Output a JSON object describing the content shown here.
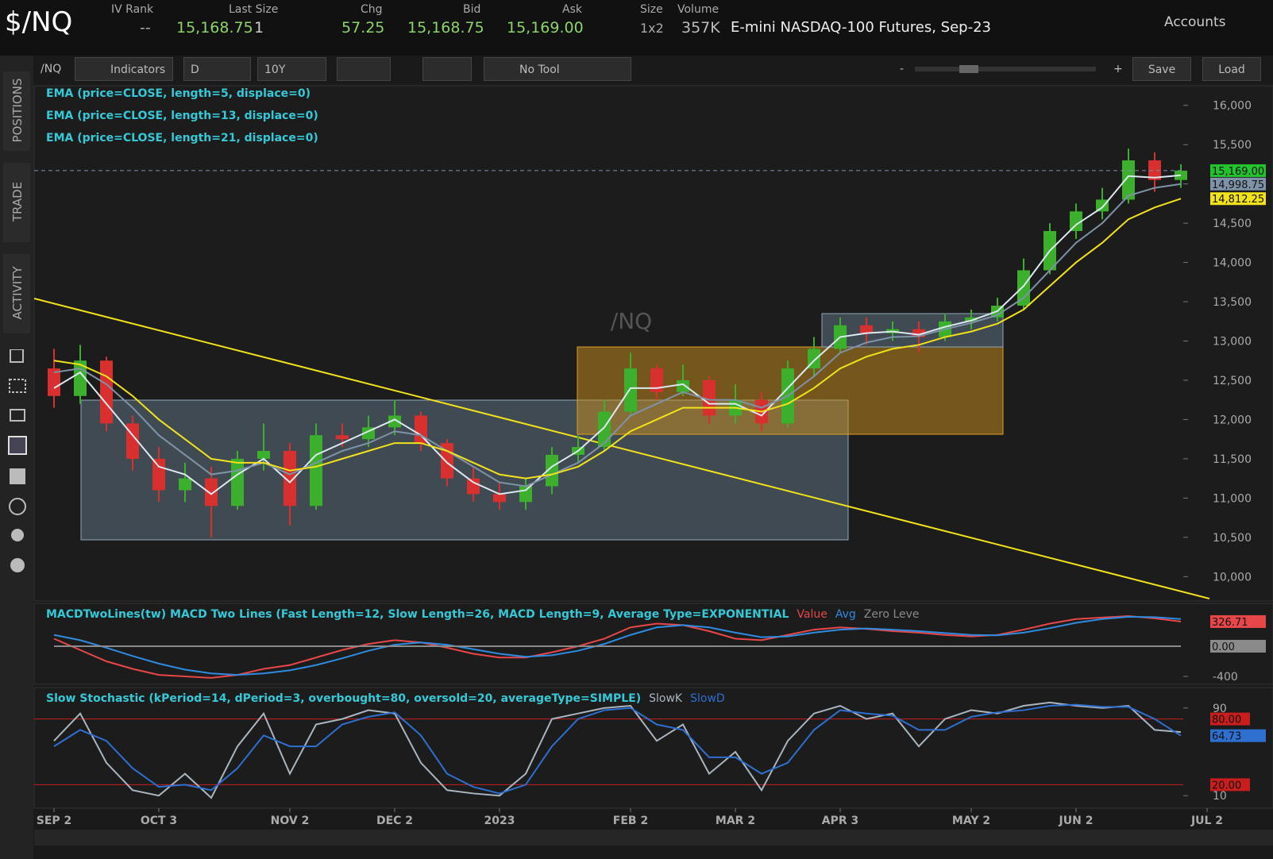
{
  "header": {
    "symbol": "$/NQ",
    "fields": [
      {
        "label": "IV Rank",
        "value": "--"
      },
      {
        "label": "Last Size",
        "value": "15,168.75",
        "extra": "1"
      },
      {
        "label": "Chg",
        "value": "57.25"
      },
      {
        "label": "Bid",
        "value": "15,168.75"
      },
      {
        "label": "Ask",
        "value": "15,169.00"
      },
      {
        "label": "Size",
        "value": "1x2"
      },
      {
        "label": "Volume",
        "value": "357K"
      }
    ],
    "description": "E-mini NASDAQ-100 Futures, Sep-23",
    "accounts": "Accounts"
  },
  "toolbar": {
    "symbol": "/NQ",
    "indicators": "Indicators",
    "aggregation": "D",
    "range": "10Y",
    "tool": "No Tool",
    "zoom_out": "-",
    "zoom_in": "+",
    "save": "Save",
    "load": "Load"
  },
  "sidebar": {
    "tabs": [
      "POSITIONS",
      "TRADE",
      "ACTIVITY"
    ]
  },
  "chart_data": [
    {
      "type": "candlestick",
      "watermark": "/NQ",
      "categories": [
        "SEP 2",
        null,
        null,
        null,
        "OCT 3",
        null,
        null,
        null,
        null,
        "NOV 2",
        null,
        null,
        null,
        "DEC 2",
        null,
        null,
        null,
        "2023",
        null,
        null,
        null,
        null,
        "FEB 2",
        null,
        null,
        null,
        "MAR 2",
        null,
        null,
        null,
        "APR 3",
        null,
        null,
        null,
        null,
        "MAY 2",
        null,
        null,
        null,
        "JUN 2",
        null,
        null,
        null,
        null,
        "JUL 2"
      ],
      "open": [
        12650,
        12300,
        12750,
        11950,
        11500,
        11100,
        11250,
        10900,
        11500,
        11600,
        10900,
        11800,
        11750,
        11900,
        12050,
        11700,
        11250,
        11050,
        10950,
        11150,
        11550,
        11650,
        12100,
        12650,
        12350,
        12500,
        12050,
        12250,
        11950,
        12650,
        12900,
        13200,
        13100,
        13150,
        13050,
        13250,
        13300,
        13450,
        13900,
        14400,
        14650,
        14800,
        15300,
        15050,
        null
      ],
      "high": [
        12900,
        12950,
        12800,
        12050,
        11650,
        11450,
        11400,
        11600,
        11950,
        11700,
        11950,
        11950,
        12050,
        12250,
        12100,
        11750,
        11400,
        11200,
        11250,
        11650,
        11800,
        12250,
        12850,
        12700,
        12700,
        12550,
        12450,
        12350,
        12750,
        13050,
        13300,
        13300,
        13250,
        13250,
        13350,
        13400,
        13550,
        14050,
        14500,
        14750,
        14950,
        15450,
        15400,
        15250,
        null
      ],
      "low": [
        12150,
        12200,
        11850,
        11350,
        10950,
        10950,
        10500,
        10850,
        11350,
        10650,
        10850,
        11650,
        11650,
        11800,
        11600,
        11150,
        10950,
        10850,
        10850,
        11050,
        11450,
        11600,
        12050,
        12250,
        12300,
        11950,
        11950,
        11850,
        11900,
        12550,
        12850,
        12950,
        13000,
        12850,
        13000,
        13150,
        13250,
        13400,
        13850,
        14300,
        14550,
        14750,
        14900,
        14950,
        null
      ],
      "close": [
        12300,
        12750,
        11950,
        11500,
        11100,
        11250,
        10900,
        11500,
        11600,
        10900,
        11800,
        11750,
        11900,
        12050,
        11700,
        11250,
        11050,
        10950,
        11150,
        11550,
        11650,
        12100,
        12650,
        12350,
        12500,
        12050,
        12250,
        11950,
        12650,
        12900,
        13200,
        13100,
        13150,
        13050,
        13250,
        13300,
        13450,
        13900,
        14400,
        14650,
        14800,
        15300,
        15050,
        15169,
        null
      ],
      "up_color": "#3cb02c",
      "down_color": "#d8302e",
      "series": [
        {
          "name": "EMA (price=CLOSE, length=5, displace=0)",
          "color": "#dce8f2",
          "values": [
            12400,
            12600,
            12200,
            11800,
            11400,
            11300,
            11050,
            11300,
            11500,
            11200,
            11550,
            11700,
            11850,
            12000,
            11800,
            11450,
            11200,
            11050,
            11100,
            11400,
            11600,
            11900,
            12400,
            12400,
            12450,
            12200,
            12200,
            12050,
            12400,
            12750,
            13050,
            13100,
            13120,
            13080,
            13180,
            13260,
            13380,
            13700,
            14150,
            14480,
            14700,
            15100,
            15080,
            15110,
            null
          ]
        },
        {
          "name": "EMA (price=CLOSE, length=13, displace=0)",
          "color": "#7f93a8",
          "values": [
            12600,
            12650,
            12450,
            12150,
            11800,
            11550,
            11300,
            11350,
            11450,
            11300,
            11450,
            11600,
            11700,
            11850,
            11800,
            11600,
            11400,
            11200,
            11150,
            11300,
            11450,
            11700,
            12050,
            12200,
            12350,
            12250,
            12250,
            12150,
            12300,
            12550,
            12850,
            12980,
            13050,
            13060,
            13150,
            13230,
            13330,
            13550,
            13900,
            14250,
            14500,
            14850,
            14950,
            14998.75,
            null
          ]
        },
        {
          "name": "EMA (price=CLOSE, length=21, displace=0)",
          "color": "#f2e21c",
          "values": [
            12750,
            12700,
            12550,
            12300,
            12000,
            11750,
            11500,
            11450,
            11450,
            11350,
            11400,
            11500,
            11600,
            11700,
            11700,
            11600,
            11450,
            11300,
            11250,
            11300,
            11400,
            11600,
            11850,
            12000,
            12150,
            12150,
            12150,
            12100,
            12200,
            12400,
            12650,
            12800,
            12900,
            12950,
            13050,
            13120,
            13220,
            13400,
            13700,
            14000,
            14250,
            14550,
            14700,
            14812.25,
            null
          ]
        }
      ],
      "ylim": [
        9750,
        16250
      ],
      "yticks": [
        {
          "value": 10000,
          "label": "10,000"
        },
        {
          "value": 10500,
          "label": "10,500"
        },
        {
          "value": 11000,
          "label": "11,000"
        },
        {
          "value": 11500,
          "label": "11,500"
        },
        {
          "value": 12000,
          "label": "12,000"
        },
        {
          "value": 12500,
          "label": "12,500"
        },
        {
          "value": 13000,
          "label": "13,000"
        },
        {
          "value": 13500,
          "label": "13,500"
        },
        {
          "value": 14000,
          "label": "14,000"
        },
        {
          "value": 14500,
          "label": "14,500"
        },
        {
          "value": 15000,
          "label": "15,000"
        },
        {
          "value": 15500,
          "label": "15,500"
        },
        {
          "value": 16000,
          "label": "16,000"
        }
      ],
      "price_tags": [
        {
          "value": 15169,
          "label": "15,169.00",
          "color": "#22c32e",
          "line": "dashed"
        },
        {
          "value": 14998.75,
          "label": "14,998.75",
          "color": "#7f93a8"
        },
        {
          "value": 14812.25,
          "label": "14,812.25",
          "color": "#f2e21c"
        }
      ]
    },
    {
      "type": "line",
      "title": "MACDTwoLines(tw) MACD Two Lines (Fast Length=12, Slow Length=26, MACD Length=9, Average Type=EXPONENTIAL",
      "series": [
        {
          "name": "Value",
          "color": "#e8474a",
          "values": [
            100,
            -50,
            -200,
            -300,
            -380,
            -400,
            -420,
            -380,
            -300,
            -250,
            -150,
            -50,
            30,
            80,
            50,
            -20,
            -100,
            -150,
            -150,
            -80,
            0,
            100,
            250,
            300,
            280,
            200,
            100,
            80,
            150,
            220,
            250,
            230,
            200,
            180,
            150,
            130,
            150,
            220,
            300,
            360,
            380,
            400,
            370,
            326.71,
            null
          ]
        },
        {
          "name": "Avg",
          "color": "#2f8be0",
          "values": [
            150,
            80,
            -20,
            -130,
            -230,
            -310,
            -360,
            -380,
            -360,
            -320,
            -250,
            -160,
            -60,
            20,
            50,
            20,
            -40,
            -100,
            -140,
            -120,
            -60,
            30,
            150,
            250,
            280,
            250,
            180,
            120,
            130,
            180,
            220,
            235,
            220,
            200,
            175,
            150,
            145,
            180,
            240,
            310,
            360,
            390,
            385,
            360,
            null
          ]
        },
        {
          "name": "Zero Leve",
          "color": "#8a8a8a",
          "values": [
            0,
            0,
            0,
            0,
            0,
            0,
            0,
            0,
            0,
            0,
            0,
            0,
            0,
            0,
            0,
            0,
            0,
            0,
            0,
            0,
            0,
            0,
            0,
            0,
            0,
            0,
            0,
            0,
            0,
            0,
            0,
            0,
            0,
            0,
            0,
            0,
            0,
            0,
            0,
            0,
            0,
            0,
            0,
            0,
            null
          ]
        }
      ],
      "ylim": [
        -505,
        568
      ],
      "yticks": [
        -400
      ],
      "price_tags": [
        {
          "value": 326.71,
          "label": "326.71",
          "color": "#e8474a"
        },
        {
          "value": 0,
          "label": "0.00",
          "color": "#8a8a8a"
        }
      ]
    },
    {
      "type": "line",
      "title": "Slow Stochastic (kPeriod=14, dPeriod=3, overbought=80, oversold=20, averageType=SIMPLE)",
      "series": [
        {
          "name": "SlowK",
          "color": "#a9b5c0",
          "values": [
            60,
            85,
            40,
            15,
            10,
            30,
            8,
            55,
            85,
            30,
            75,
            80,
            88,
            85,
            40,
            15,
            12,
            10,
            30,
            80,
            85,
            90,
            92,
            60,
            75,
            30,
            50,
            15,
            60,
            85,
            92,
            80,
            85,
            55,
            80,
            88,
            85,
            92,
            95,
            92,
            90,
            92,
            70,
            68,
            null
          ]
        },
        {
          "name": "SlowD",
          "color": "#2f6fd0",
          "values": [
            55,
            70,
            60,
            35,
            18,
            20,
            15,
            35,
            65,
            55,
            55,
            75,
            82,
            86,
            65,
            30,
            18,
            12,
            20,
            55,
            80,
            88,
            90,
            75,
            70,
            45,
            45,
            30,
            40,
            70,
            88,
            85,
            83,
            70,
            70,
            82,
            86,
            88,
            92,
            93,
            91,
            91,
            80,
            64.73,
            null
          ]
        }
      ],
      "ylim": [
        0,
        100
      ],
      "yticks": [
        10,
        90
      ],
      "levels": [
        {
          "value": 80,
          "label": "80.00",
          "color": "#c81e1e"
        },
        {
          "value": 20,
          "label": "20.00",
          "color": "#c81e1e"
        }
      ],
      "price_tags": [
        {
          "value": 64.73,
          "label": "64.73",
          "color": "#2f6fd0"
        }
      ]
    }
  ]
}
